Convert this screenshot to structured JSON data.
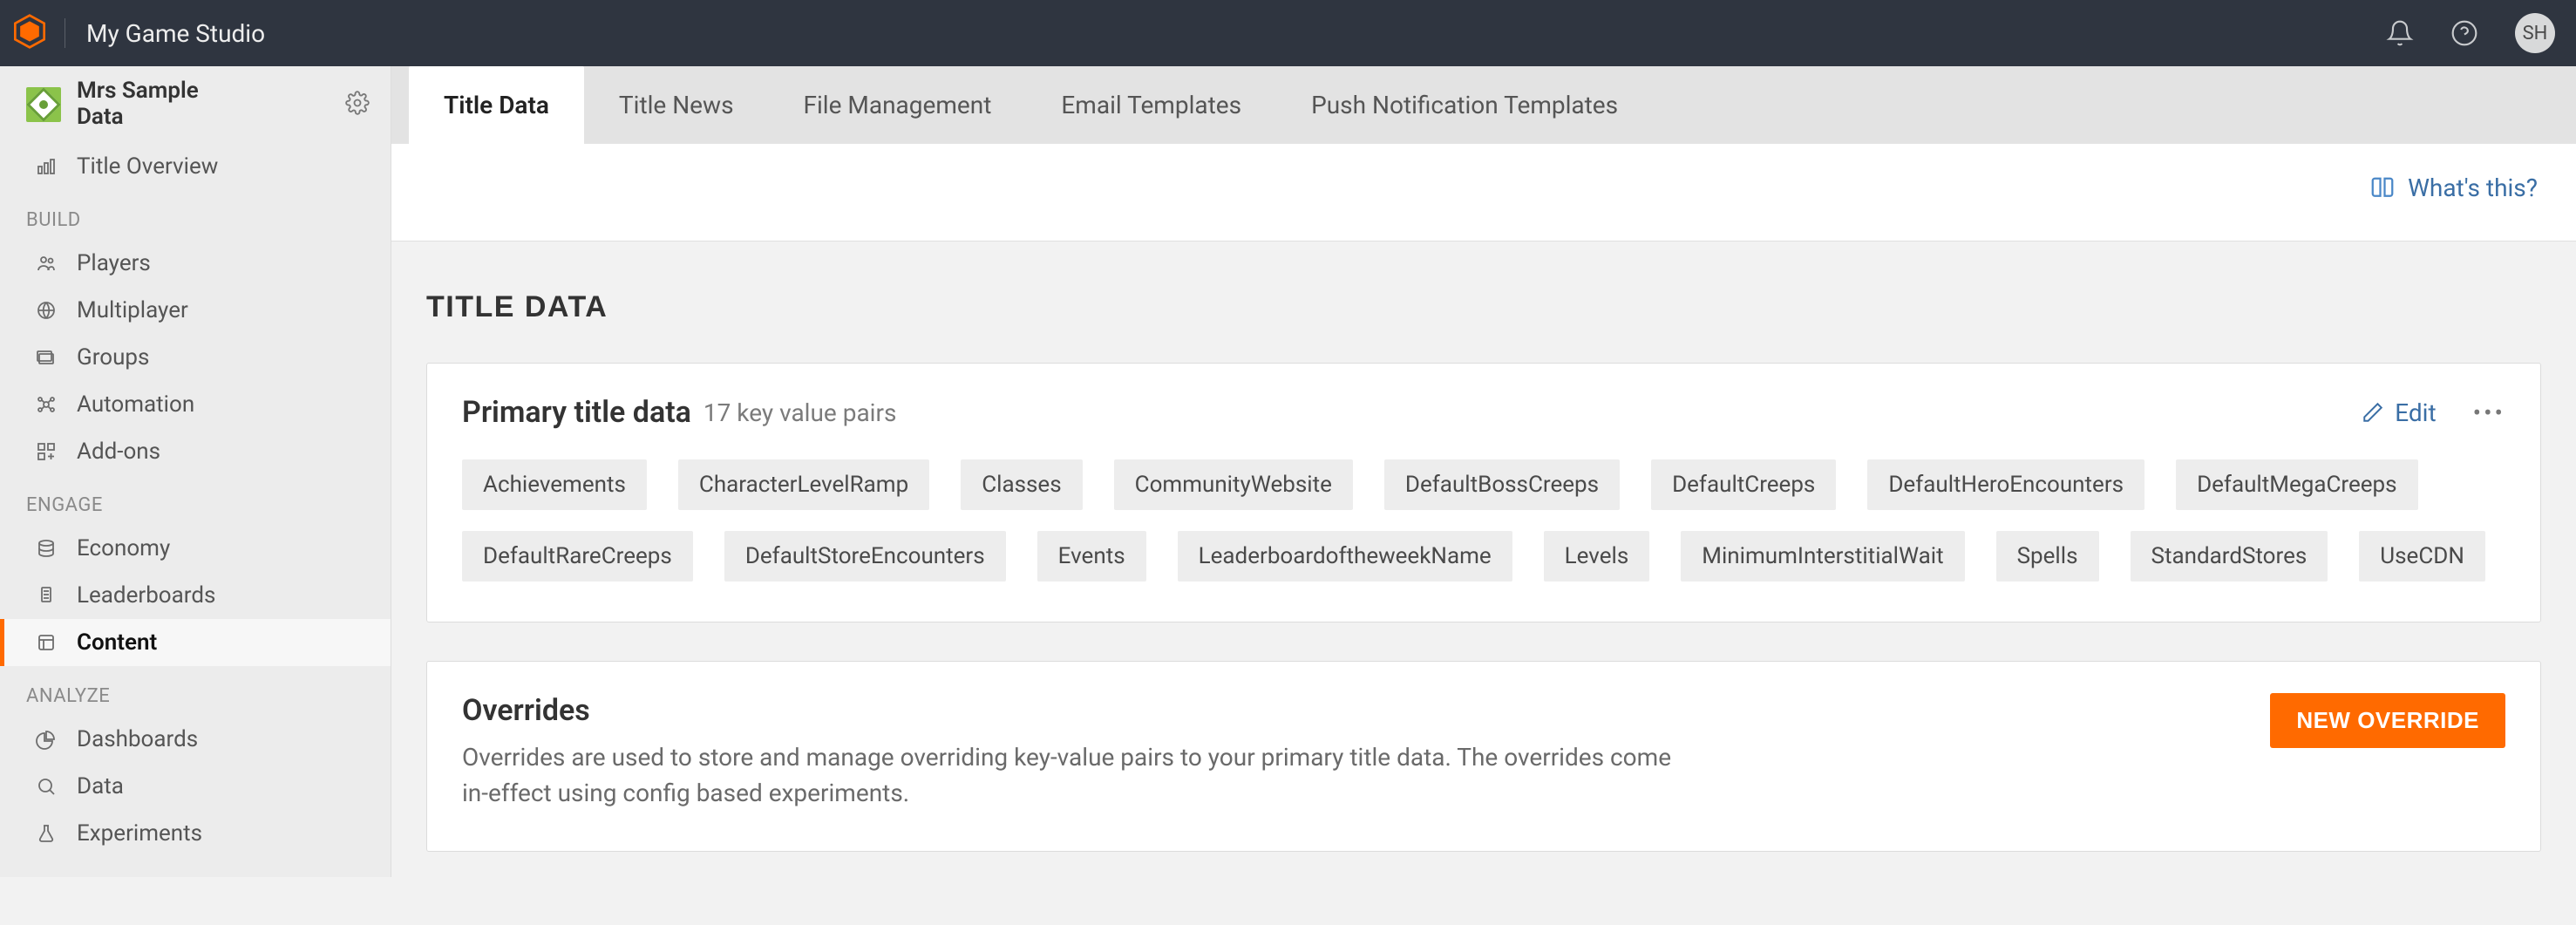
{
  "topbar": {
    "studio_name": "My Game Studio",
    "avatar_initials": "SH"
  },
  "sidebar": {
    "title_line1": "Mrs Sample",
    "title_line2": "Data",
    "overview_label": "Title Overview",
    "sections": {
      "build": {
        "label": "BUILD",
        "items": [
          {
            "label": "Players",
            "icon": "players"
          },
          {
            "label": "Multiplayer",
            "icon": "globe"
          },
          {
            "label": "Groups",
            "icon": "folder"
          },
          {
            "label": "Automation",
            "icon": "automation"
          },
          {
            "label": "Add-ons",
            "icon": "addons"
          }
        ]
      },
      "engage": {
        "label": "ENGAGE",
        "items": [
          {
            "label": "Economy",
            "icon": "economy"
          },
          {
            "label": "Leaderboards",
            "icon": "leaderboard"
          },
          {
            "label": "Content",
            "icon": "content",
            "active": true
          }
        ]
      },
      "analyze": {
        "label": "ANALYZE",
        "items": [
          {
            "label": "Dashboards",
            "icon": "dashboard"
          },
          {
            "label": "Data",
            "icon": "data"
          },
          {
            "label": "Experiments",
            "icon": "experiments"
          }
        ]
      }
    }
  },
  "tabs": [
    {
      "label": "Title Data",
      "active": true
    },
    {
      "label": "Title News"
    },
    {
      "label": "File Management"
    },
    {
      "label": "Email Templates"
    },
    {
      "label": "Push Notification Templates"
    }
  ],
  "whats_this": "What's this?",
  "page": {
    "heading": "TITLE DATA",
    "primary": {
      "title": "Primary title data",
      "count_text": "17 key value pairs",
      "edit_label": "Edit",
      "keys": [
        "Achievements",
        "CharacterLevelRamp",
        "Classes",
        "CommunityWebsite",
        "DefaultBossCreeps",
        "DefaultCreeps",
        "DefaultHeroEncounters",
        "DefaultMegaCreeps",
        "DefaultRareCreeps",
        "DefaultStoreEncounters",
        "Events",
        "LeaderboardoftheweekName",
        "Levels",
        "MinimumInterstitialWait",
        "Spells",
        "StandardStores",
        "UseCDN"
      ]
    },
    "overrides": {
      "title": "Overrides",
      "description": "Overrides are used to store and manage overriding key-value pairs to your primary title data. The overrides come in-effect using config based experiments.",
      "button_label": "NEW OVERRIDE"
    }
  },
  "colors": {
    "accent": "#ff6a00",
    "topbar_bg": "#2f3540",
    "sidebar_bg": "#ececec",
    "page_bg": "#f2f2f2",
    "chip_bg": "#ededed",
    "link": "#3a6ea5"
  }
}
